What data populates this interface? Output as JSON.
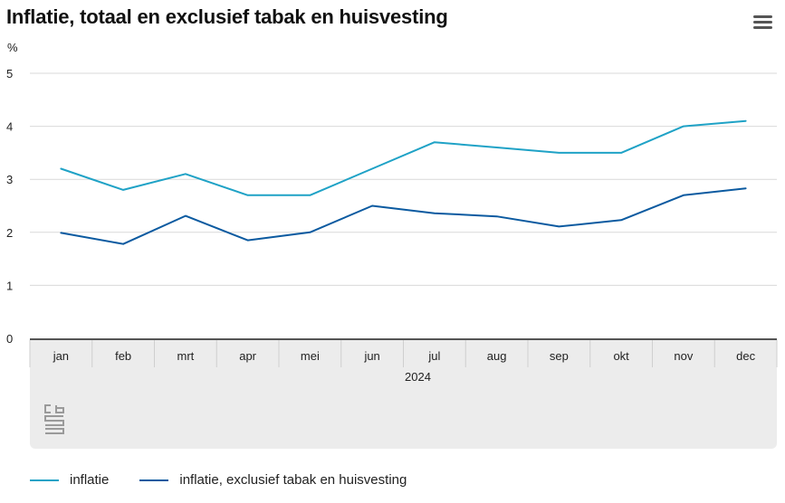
{
  "header": {
    "title": "Inflatie, totaal en exclusief tabak en huisvesting"
  },
  "menu": {
    "icon": "hamburger-menu-icon"
  },
  "logo": {
    "icon": "cbs-logo-icon"
  },
  "chart_data": {
    "type": "line",
    "title": "Inflatie, totaal en exclusief tabak en huisvesting",
    "ylabel": "%",
    "xlabel": "2024",
    "ylim": [
      0,
      5
    ],
    "yticks": [
      0,
      1,
      2,
      3,
      4,
      5
    ],
    "categories": [
      "jan",
      "feb",
      "mrt",
      "apr",
      "mei",
      "jun",
      "jul",
      "aug",
      "sep",
      "okt",
      "nov",
      "dec"
    ],
    "series": [
      {
        "name": "inflatie",
        "color": "#1fa2c6",
        "values": [
          3.2,
          2.8,
          3.1,
          2.7,
          2.7,
          3.2,
          3.7,
          3.6,
          3.5,
          3.5,
          4.0,
          4.1
        ]
      },
      {
        "name": "inflatie, exclusief tabak en huisvesting",
        "color": "#0b5aa0",
        "values": [
          1.99,
          1.78,
          2.31,
          1.85,
          2.0,
          2.5,
          2.36,
          2.3,
          2.11,
          2.23,
          2.7,
          2.83
        ]
      }
    ],
    "grid": true,
    "legend": "bottom-left"
  }
}
